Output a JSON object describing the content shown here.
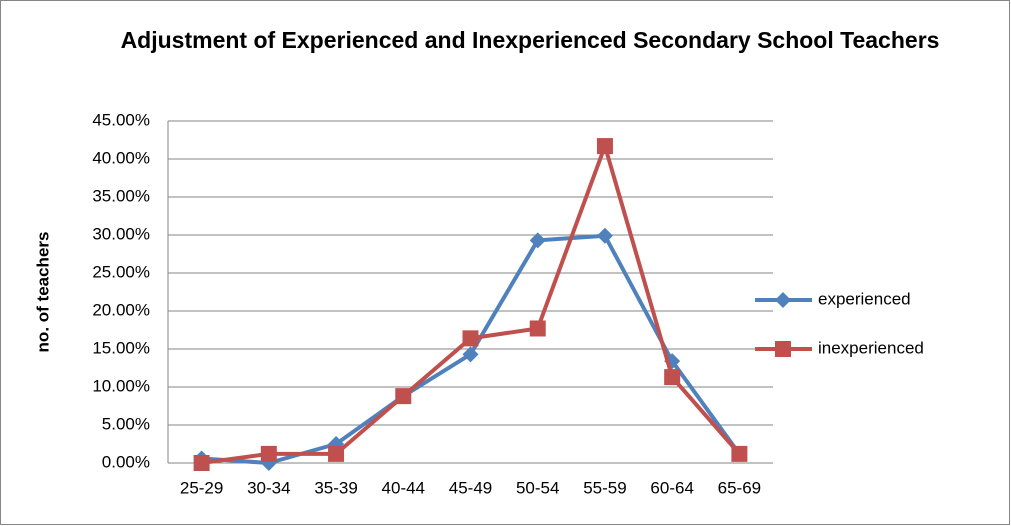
{
  "chart_data": {
    "type": "line",
    "title": "Adjustment of Experienced and Inexperienced Secondary School Teachers",
    "y_label": "no. of teachers",
    "categories": [
      "25-29",
      "30-34",
      "35-39",
      "40-44",
      "45-49",
      "50-54",
      "55-59",
      "60-64",
      "65-69"
    ],
    "series": [
      {
        "name": "experienced",
        "color": "#4f81bd",
        "marker": "diamond",
        "values": [
          0.6,
          0,
          2.5,
          8.8,
          14.3,
          29.3,
          29.9,
          13.4,
          1.2
        ]
      },
      {
        "name": "inexperienced",
        "color": "#c0504d",
        "marker": "square",
        "values": [
          0,
          1.2,
          1.2,
          8.8,
          16.4,
          17.7,
          41.7,
          11.3,
          1.2
        ]
      }
    ],
    "ylim": [
      0,
      45
    ],
    "yticks": [
      {
        "value": 0,
        "label": "0.00%"
      },
      {
        "value": 5,
        "label": "5.00%"
      },
      {
        "value": 10,
        "label": "10.00%"
      },
      {
        "value": 15,
        "label": "15.00%"
      },
      {
        "value": 20,
        "label": "20.00%"
      },
      {
        "value": 25,
        "label": "25.00%"
      },
      {
        "value": 30,
        "label": "30.00%"
      },
      {
        "value": 35,
        "label": "35.00%"
      },
      {
        "value": 40,
        "label": "40.00%"
      },
      {
        "value": 45,
        "label": "45.00%"
      }
    ],
    "grid": true,
    "legend": "right"
  }
}
